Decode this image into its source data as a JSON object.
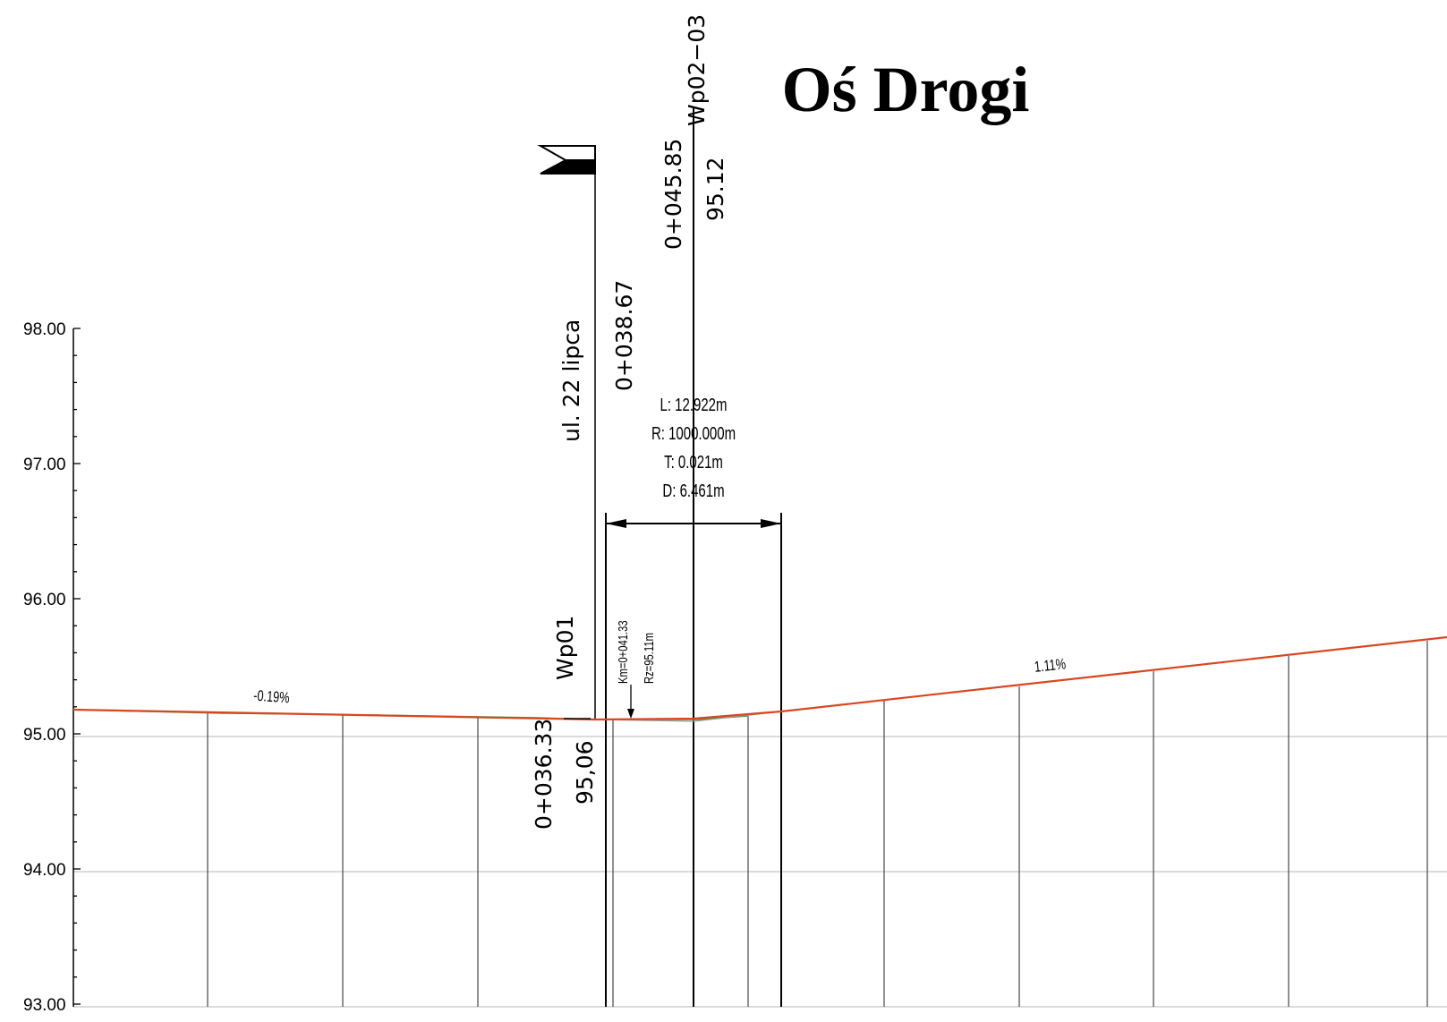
{
  "title": "Oś Drogi",
  "axis": {
    "ylim": [
      93.0,
      98.0
    ],
    "tick_labels": [
      "98.00",
      "97.00",
      "96.00",
      "95.00",
      "94.00",
      "93.00"
    ]
  },
  "profile": {
    "line_color": "#d9471f",
    "terrain_color": "#3a9a3a",
    "grade_left": "-0.19%",
    "grade_right": "1.11%"
  },
  "labels": {
    "street": "ul.  22  lipca",
    "station_038": "0+038.67",
    "station_045": "0+045.85",
    "elev_045": "95.12",
    "point_wp0203": "Wp02−03",
    "point_wp01": "Wp01",
    "station_036": "0+036.33",
    "elev_036": "95,06",
    "km": "Km=0+041.33",
    "rz": "Rz=95.11m"
  },
  "curve": {
    "L": "L: 12.922m",
    "R": "R: 1000.000m",
    "T": "T: 0.021m",
    "D": "D: 6.461m"
  }
}
